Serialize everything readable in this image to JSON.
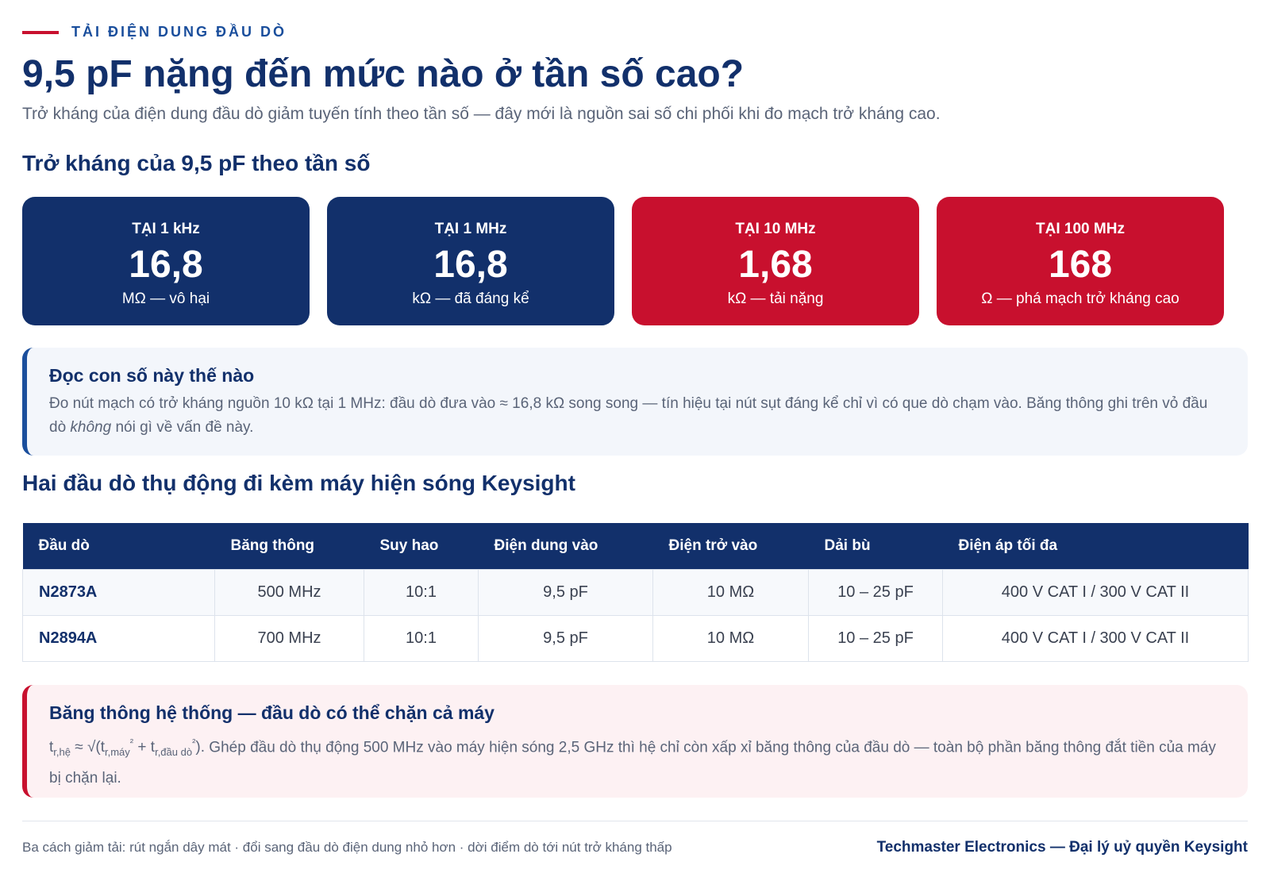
{
  "header": {
    "eyebrow": "TẢI ĐIỆN DUNG ĐẦU DÒ",
    "title": "9,5 pF nặng đến mức nào ở tần số cao?",
    "subtitle": "Trở kháng của điện dung đầu dò giảm tuyến tính theo tần số — đây mới là nguồn sai số chi phối khi đo mạch trở kháng cao."
  },
  "impedance_section": {
    "heading": "Trở kháng của 9,5 pF theo tần số",
    "cards": [
      {
        "label": "TẠI 1 kHz",
        "value": "16,8",
        "unit": "MΩ — vô hại",
        "color": "#12306b"
      },
      {
        "label": "TẠI 1 MHz",
        "value": "16,8",
        "unit": "kΩ — đã đáng kể",
        "color": "#12306b"
      },
      {
        "label": "TẠI 10 MHz",
        "value": "1,68",
        "unit": "kΩ — tải nặng",
        "color": "#c8102e"
      },
      {
        "label": "TẠI 100 MHz",
        "value": "168",
        "unit": "Ω — phá mạch trở kháng cao",
        "color": "#c8102e"
      }
    ]
  },
  "info_note": {
    "title": "Đọc con số này thế nào",
    "body_before": "Đo nút mạch có trở kháng nguồn 10 kΩ tại 1 MHz: đầu dò đưa vào ≈ 16,8 kΩ song song — tín hiệu tại nút sụt đáng kể chỉ vì có que dò chạm vào. Băng thông ghi trên vỏ đầu dò ",
    "body_emph": "không",
    "body_after": " nói gì về vấn đề này."
  },
  "probes_section": {
    "heading": "Hai đầu dò thụ động đi kèm máy hiện sóng Keysight",
    "columns": [
      "Đầu dò",
      "Băng thông",
      "Suy hao",
      "Điện dung vào",
      "Điện trở vào",
      "Dải bù",
      "Điện áp tối đa"
    ],
    "rows": [
      [
        "N2873A",
        "500 MHz",
        "10:1",
        "9,5 pF",
        "10 MΩ",
        "10 – 25 pF",
        "400 V CAT I / 300 V CAT II"
      ],
      [
        "N2894A",
        "700 MHz",
        "10:1",
        "9,5 pF",
        "10 MΩ",
        "10 – 25 pF",
        "400 V CAT I / 300 V CAT II"
      ]
    ]
  },
  "warn_note": {
    "title": "Băng thông hệ thống — đầu dò có thể chặn cả máy",
    "formula": {
      "t": "t",
      "sub_sys": "r,hệ",
      "approx": " ≈ √(t",
      "sub_scope": "r,máy",
      "sq1": "²",
      "plus": " + t",
      "sub_probe": "r,đầu dò",
      "sq2": "²",
      "close": ")."
    },
    "body": " Ghép đầu dò thụ động 500 MHz vào máy hiện sóng 2,5 GHz thì hệ chỉ còn xấp xỉ băng thông của đầu dò — toàn bộ phần băng thông đắt tiền của máy bị chặn lại."
  },
  "footer": {
    "left": "Ba cách giảm tải: rút ngắn dây mát · đổi sang đầu dò điện dung nhỏ hơn · dời điểm dò tới nút trở kháng thấp",
    "right": "Techmaster Electronics — Đại lý uỷ quyền Keysight"
  },
  "colors": {
    "navy": "#12306b",
    "red": "#c8102e",
    "accent_blue": "#1a4e9c"
  }
}
